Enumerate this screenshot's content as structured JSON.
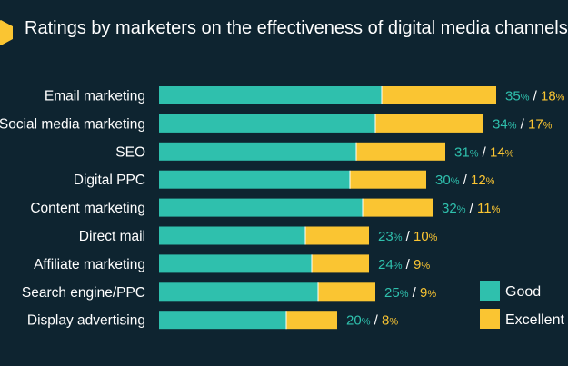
{
  "title": "Ratings by marketers on the effectiveness of digital media channels",
  "colors": {
    "good": "#2fc0ad",
    "excellent": "#fac532",
    "background": "#0e2430",
    "separator": "#ffffff"
  },
  "chart_data": {
    "type": "bar",
    "orientation": "horizontal",
    "stacked": true,
    "categories": [
      "Email marketing",
      "Social media marketing",
      "SEO",
      "Digital PPC",
      "Content marketing",
      "Direct mail",
      "Affiliate marketing",
      "Search engine/PPC",
      "Display advertising"
    ],
    "series": [
      {
        "name": "Good",
        "color": "#2fc0ad",
        "values": [
          35,
          34,
          31,
          30,
          32,
          23,
          24,
          25,
          20
        ]
      },
      {
        "name": "Excellent",
        "color": "#fac532",
        "values": [
          18,
          17,
          14,
          12,
          11,
          10,
          9,
          9,
          8
        ]
      }
    ],
    "value_suffix": "%",
    "legend": {
      "position": "right",
      "items": [
        "Good",
        "Excellent"
      ]
    }
  }
}
